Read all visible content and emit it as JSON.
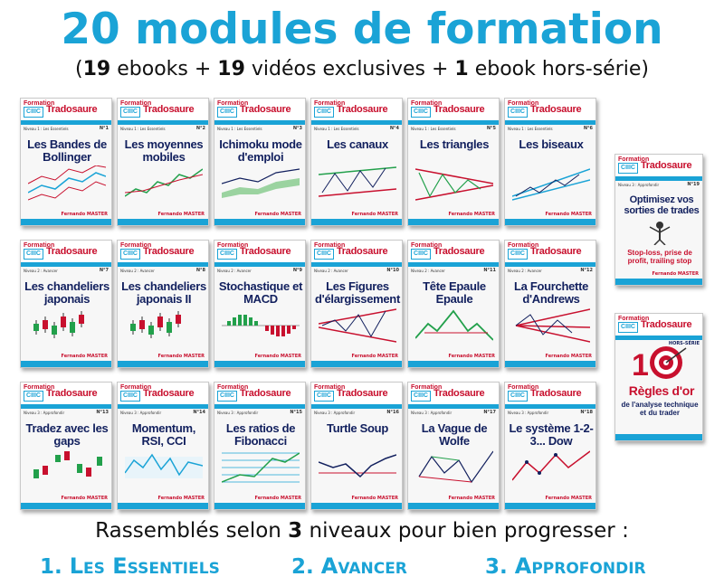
{
  "title": "20 modules de formation",
  "subtitle": {
    "open": "(",
    "n1": "19",
    "t1": " ebooks + ",
    "n2": "19",
    "t2": " vidéos exclusives + ",
    "n3": "1",
    "t3": " ebook hors-série)"
  },
  "book_common": {
    "prefix": "Formation",
    "logo": "CIIIC",
    "brand": "Tradosaure",
    "author": "Fernando MASTER"
  },
  "books": [
    {
      "num": "N°1",
      "level": "Niveau 1 : Les Essentiels",
      "title": "Les Bandes de Bollinger"
    },
    {
      "num": "N°2",
      "level": "Niveau 1 : Les Essentiels",
      "title": "Les moyennes mobiles"
    },
    {
      "num": "N°3",
      "level": "Niveau 1 : Les Essentiels",
      "title": "Ichimoku mode d'emploi"
    },
    {
      "num": "N°4",
      "level": "Niveau 1 : Les Essentiels",
      "title": "Les canaux"
    },
    {
      "num": "N°5",
      "level": "Niveau 1 : Les Essentiels",
      "title": "Les triangles"
    },
    {
      "num": "N°6",
      "level": "Niveau 1 : Les Essentiels",
      "title": "Les biseaux"
    },
    {
      "num": "N°7",
      "level": "Niveau 2 : Avancer",
      "title": "Les chandeliers japonais"
    },
    {
      "num": "N°8",
      "level": "Niveau 2 : Avancer",
      "title": "Les chandeliers japonais II"
    },
    {
      "num": "N°9",
      "level": "Niveau 2 : Avancer",
      "title": "Stochastique et MACD"
    },
    {
      "num": "N°10",
      "level": "Niveau 2 : Avancer",
      "title": "Les Figures d'élargissement"
    },
    {
      "num": "N°11",
      "level": "Niveau 2 : Avancer",
      "title": "Tête Epaule Epaule"
    },
    {
      "num": "N°12",
      "level": "Niveau 2 : Avancer",
      "title": "La Fourchette d'Andrews"
    },
    {
      "num": "N°13",
      "level": "Niveau 3 : Approfondir",
      "title": "Tradez avec les gaps"
    },
    {
      "num": "N°14",
      "level": "Niveau 3 : Approfondir",
      "title": "Momentum, RSI, CCI"
    },
    {
      "num": "N°15",
      "level": "Niveau 3 : Approfondir",
      "title": "Les ratios de Fibonacci"
    },
    {
      "num": "N°16",
      "level": "Niveau 3 : Approfondir",
      "title": "Turtle Soup"
    },
    {
      "num": "N°17",
      "level": "Niveau 3 : Approfondir",
      "title": "La Vague de Wolfe"
    },
    {
      "num": "N°18",
      "level": "Niveau 3 : Approfondir",
      "title": "Le système 1-2-3... Dow"
    }
  ],
  "side_books": [
    {
      "num": "N°19",
      "level": "Niveau 3 : Approfondir",
      "title": "Optimisez vos sorties de trades",
      "sub": "Stop-loss, prise de profit, trailing stop"
    },
    {
      "num": "HORS-SÉRIE",
      "level": "",
      "title": "Règles d'or",
      "sub": "de l'analyse technique et du trader"
    }
  ],
  "bottom": {
    "pre": "Rassemblés selon ",
    "num": "3",
    "post": " niveaux pour bien progresser :"
  },
  "levels": [
    {
      "n": "1.",
      "label": "Les Essentiels"
    },
    {
      "n": "2.",
      "label": "Avancer"
    },
    {
      "n": "3.",
      "label": "Approfondir"
    }
  ],
  "colors": {
    "accent": "#1aa3d6",
    "brand_red": "#c8102e",
    "title_navy": "#12205e"
  }
}
